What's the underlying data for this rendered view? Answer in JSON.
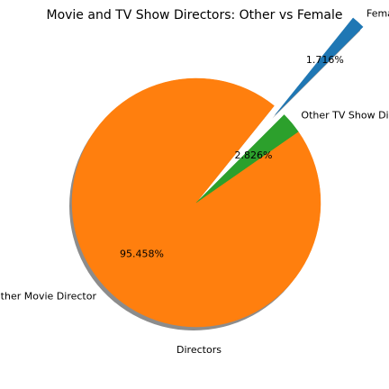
{
  "chart_data": {
    "type": "pie",
    "title": "Movie and TV Show Directors: Other vs Female",
    "xlabel": "Directors",
    "ylabel": "",
    "slices": [
      {
        "label": "Female Movie Director",
        "value": 1.716,
        "pct_label": "1.716%",
        "color": "#1f77b4",
        "exploded": true
      },
      {
        "label": "Other Movie Director",
        "value": 95.458,
        "pct_label": "95.458%",
        "color": "#ff7f0e",
        "exploded": false
      },
      {
        "label": "Other TV Show Director",
        "value": 2.826,
        "pct_label": "2.826%",
        "color": "#2ca02c",
        "exploded": false
      }
    ],
    "shadow": true,
    "legend": "none",
    "grid": false
  }
}
